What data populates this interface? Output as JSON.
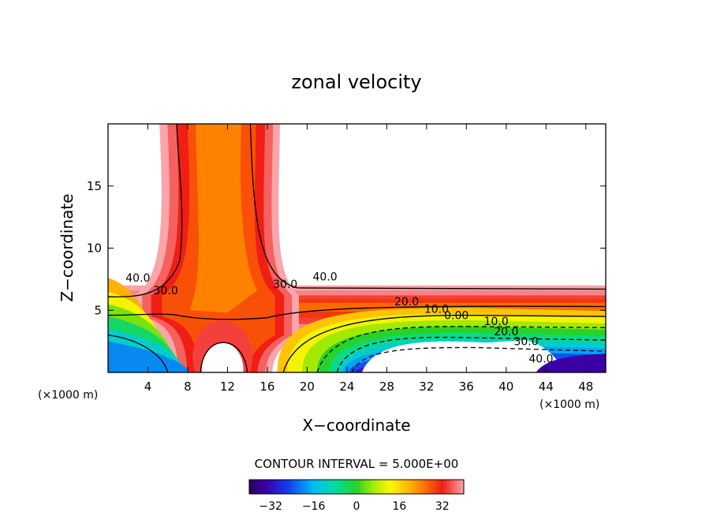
{
  "chart_data": {
    "type": "contour",
    "title": "zonal velocity",
    "xlabel": "X−coordinate",
    "ylabel": "Z−coordinate",
    "x_unit_left": "(×1000 m)",
    "x_unit_right": "(×1000 m)",
    "xlim": [
      0,
      50
    ],
    "ylim": [
      0,
      20
    ],
    "x_ticks": [
      {
        "value": 4,
        "label": "4"
      },
      {
        "value": 8,
        "label": "8"
      },
      {
        "value": 12,
        "label": "12"
      },
      {
        "value": 16,
        "label": "16"
      },
      {
        "value": 20,
        "label": "20"
      },
      {
        "value": 24,
        "label": "24"
      },
      {
        "value": 28,
        "label": "28"
      },
      {
        "value": 32,
        "label": "32"
      },
      {
        "value": 36,
        "label": "36"
      },
      {
        "value": 40,
        "label": "40"
      },
      {
        "value": 44,
        "label": "44"
      },
      {
        "value": 48,
        "label": "48"
      }
    ],
    "y_ticks": [
      {
        "value": 5,
        "label": "5"
      },
      {
        "value": 10,
        "label": "10"
      },
      {
        "value": 15,
        "label": "15"
      }
    ],
    "contour_labels": [
      {
        "text": "40.0",
        "x": 3.0,
        "y": 7.3
      },
      {
        "text": "30.0",
        "x": 5.8,
        "y": 6.3
      },
      {
        "text": "30.0",
        "x": 17.8,
        "y": 6.8
      },
      {
        "text": "40.0",
        "x": 21.8,
        "y": 7.4
      },
      {
        "text": "20.0",
        "x": 30.0,
        "y": 5.4
      },
      {
        "text": "10.0",
        "x": 33.0,
        "y": 4.8
      },
      {
        "text": "0.00",
        "x": 35.0,
        "y": 4.3
      },
      {
        "text": "10.0",
        "x": 39.0,
        "y": 3.8
      },
      {
        "text": "20.0",
        "x": 40.0,
        "y": 3.0
      },
      {
        "text": "30.0",
        "x": 42.0,
        "y": 2.2
      },
      {
        "text": "40.0",
        "x": 43.5,
        "y": 0.8
      }
    ],
    "contour_interval_text": "CONTOUR INTERVAL = 5.000E+00",
    "colorbar": {
      "range": [
        -40,
        40
      ],
      "ticks": [
        {
          "value": -32,
          "label": "−32"
        },
        {
          "value": -16,
          "label": "−16"
        },
        {
          "value": 0,
          "label": "0"
        },
        {
          "value": 16,
          "label": "16"
        },
        {
          "value": 32,
          "label": "32"
        }
      ],
      "palette": "rainbow"
    }
  }
}
